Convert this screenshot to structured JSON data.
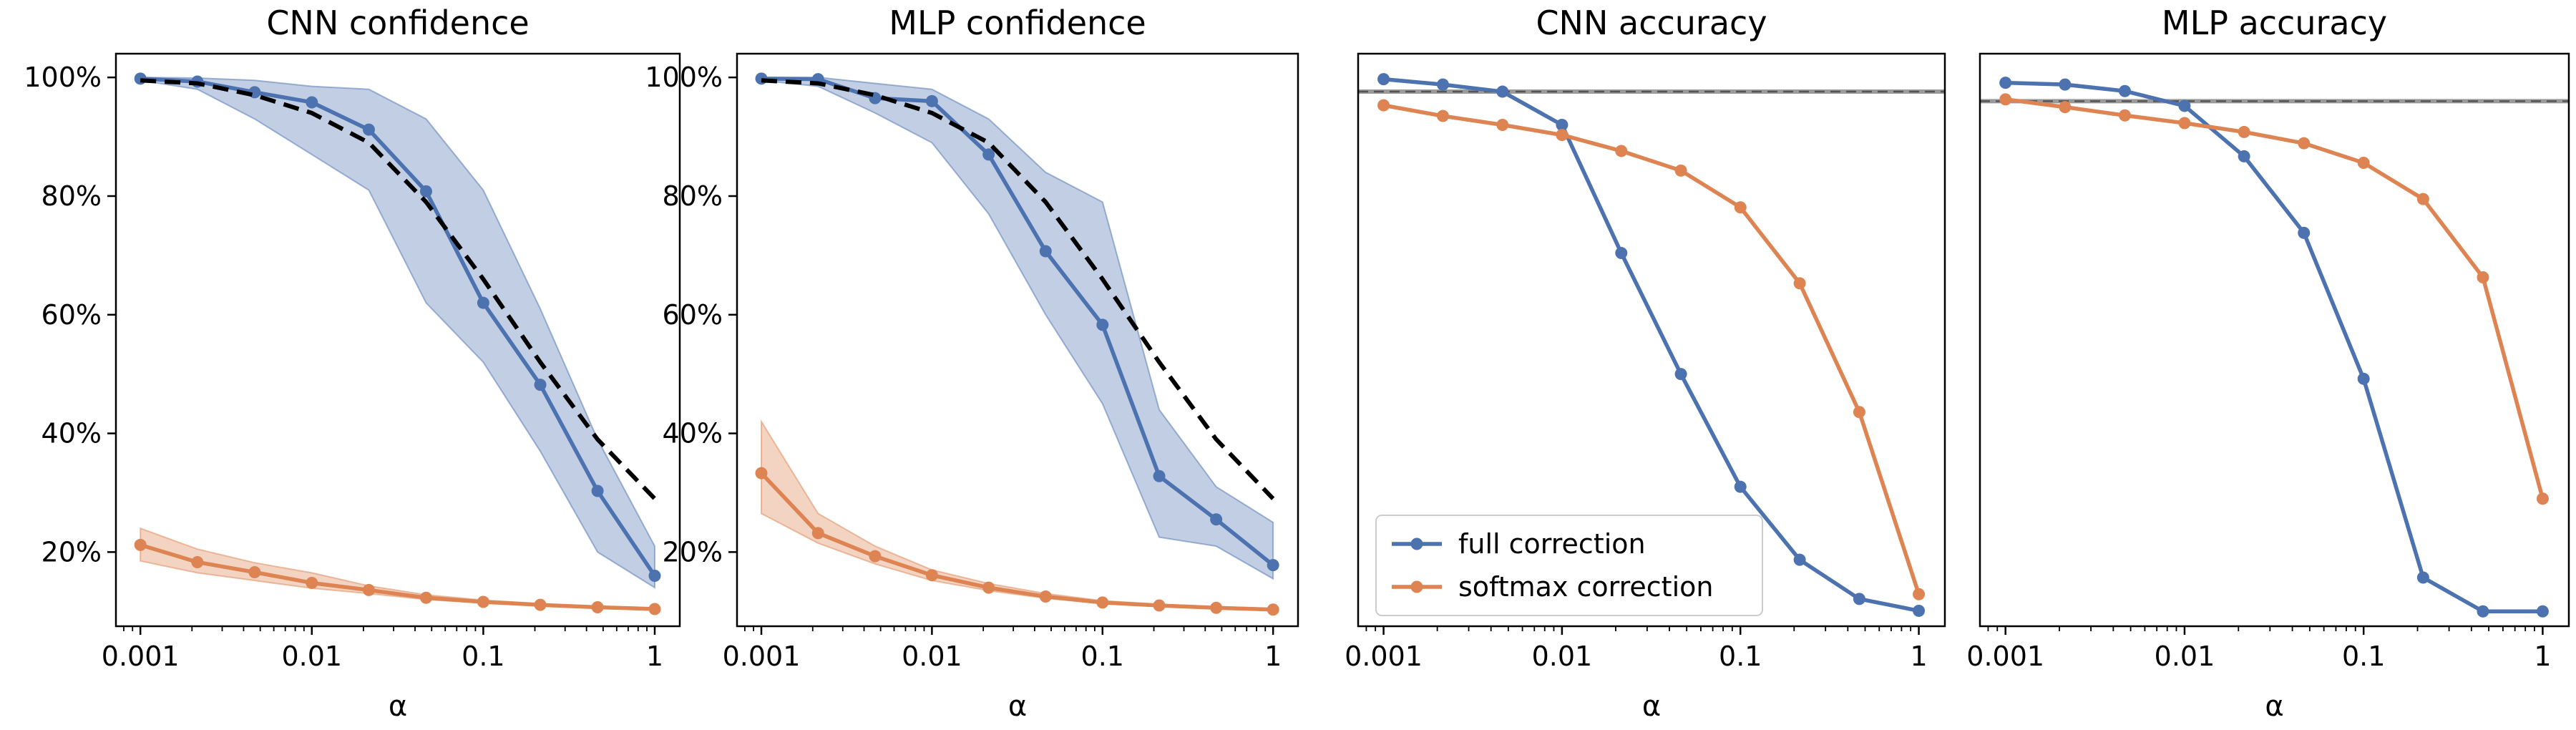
{
  "chart_data": [
    {
      "type": "line",
      "title": "CNN confidence",
      "xlabel": "α",
      "ylabel": "",
      "xscale": "log",
      "xlim": [
        0.00072,
        1.4
      ],
      "ylim": [
        7.5,
        104
      ],
      "x_ticks": [
        "0.001",
        "0.01",
        "0.1",
        "1"
      ],
      "y_ticks": [
        "20%",
        "40%",
        "60%",
        "80%",
        "100%"
      ],
      "x": [
        0.001,
        0.00215,
        0.00464,
        0.01,
        0.0215,
        0.0464,
        0.1,
        0.215,
        0.464,
        1
      ],
      "series": [
        {
          "color": "#4c72b0",
          "marker": "circle",
          "values": [
            99.8,
            99.3,
            97.5,
            95.8,
            91.2,
            80.8,
            62.0,
            48.2,
            30.3,
            16.0
          ],
          "band_low": [
            99.5,
            98.0,
            93.0,
            87.0,
            81.0,
            62.0,
            52.0,
            37.0,
            20.0,
            14.0
          ],
          "band_high": [
            100.0,
            99.9,
            99.5,
            98.5,
            98.0,
            93.0,
            81.0,
            61.0,
            39.0,
            21.0
          ]
        },
        {
          "color": "#dd8452",
          "marker": "circle",
          "values": [
            21.2,
            18.3,
            16.6,
            14.8,
            13.6,
            12.3,
            11.6,
            11.1,
            10.7,
            10.4
          ],
          "band_low": [
            18.5,
            16.5,
            15.2,
            13.9,
            13.0,
            12.0,
            11.4,
            11.0,
            10.6,
            10.3
          ],
          "band_high": [
            24.0,
            20.5,
            18.2,
            16.5,
            14.3,
            12.8,
            11.9,
            11.3,
            10.8,
            10.5
          ]
        },
        {
          "color": "#000000",
          "style": "dashed",
          "values": [
            99.5,
            99.0,
            97.0,
            94.0,
            89.0,
            79.0,
            66.0,
            52.0,
            39.0,
            29.0
          ]
        }
      ]
    },
    {
      "type": "line",
      "title": "MLP confidence",
      "xlabel": "α",
      "ylabel": "",
      "xscale": "log",
      "xlim": [
        0.00072,
        1.4
      ],
      "ylim": [
        7.5,
        104
      ],
      "x_ticks": [
        "0.001",
        "0.01",
        "0.1",
        "1"
      ],
      "y_ticks": [
        "20%",
        "40%",
        "60%",
        "80%",
        "100%"
      ],
      "x": [
        0.001,
        0.00215,
        0.00464,
        0.01,
        0.0215,
        0.0464,
        0.1,
        0.215,
        0.464,
        1
      ],
      "series": [
        {
          "color": "#4c72b0",
          "marker": "circle",
          "values": [
            99.8,
            99.7,
            96.5,
            96.0,
            87.0,
            70.7,
            58.3,
            32.8,
            25.5,
            17.8
          ],
          "band_low": [
            99.5,
            98.5,
            94.0,
            89.0,
            77.0,
            60.0,
            45.0,
            22.5,
            21.0,
            15.5
          ],
          "band_high": [
            100.0,
            100.0,
            99.0,
            98.0,
            93.0,
            84.0,
            79.0,
            44.0,
            31.0,
            25.0
          ]
        },
        {
          "color": "#dd8452",
          "marker": "circle",
          "values": [
            33.3,
            23.2,
            19.3,
            16.1,
            14.0,
            12.5,
            11.5,
            11.0,
            10.6,
            10.3
          ],
          "band_low": [
            26.5,
            21.5,
            18.0,
            15.2,
            13.5,
            12.2,
            11.3,
            10.9,
            10.5,
            10.2
          ],
          "band_high": [
            42.0,
            26.5,
            21.0,
            17.0,
            14.7,
            13.0,
            11.8,
            11.2,
            10.8,
            10.5
          ]
        },
        {
          "color": "#000000",
          "style": "dashed",
          "values": [
            99.5,
            99.0,
            97.0,
            94.0,
            89.0,
            79.0,
            66.0,
            52.0,
            39.0,
            29.0
          ]
        }
      ]
    },
    {
      "type": "line",
      "title": "CNN accuracy",
      "xlabel": "α",
      "ylabel": "",
      "xscale": "log",
      "xlim": [
        0.00072,
        1.4
      ],
      "ylim": [
        7.5,
        104
      ],
      "x_ticks": [
        "0.001",
        "0.01",
        "0.1",
        "1"
      ],
      "y_ticks": [],
      "hline": 97.6,
      "x": [
        0.001,
        0.00215,
        0.00464,
        0.01,
        0.0215,
        0.0464,
        0.1,
        0.215,
        0.464,
        1
      ],
      "legend": {
        "placement": "lower-left",
        "entries": [
          "full correction",
          "softmax correction"
        ]
      },
      "series": [
        {
          "name": "full correction",
          "color": "#4c72b0",
          "marker": "circle",
          "values": [
            99.7,
            98.8,
            97.6,
            92.0,
            70.4,
            50.0,
            31.0,
            18.7,
            12.1,
            10.1
          ]
        },
        {
          "name": "softmax correction",
          "color": "#dd8452",
          "marker": "circle",
          "values": [
            95.3,
            93.5,
            92.0,
            90.3,
            87.6,
            84.3,
            78.1,
            65.3,
            43.6,
            12.9
          ]
        }
      ]
    },
    {
      "type": "line",
      "title": "MLP accuracy",
      "xlabel": "α",
      "ylabel": "",
      "xscale": "log",
      "xlim": [
        0.00072,
        1.4
      ],
      "ylim": [
        7.5,
        104
      ],
      "x_ticks": [
        "0.001",
        "0.01",
        "0.1",
        "1"
      ],
      "y_ticks": [],
      "hline": 96.0,
      "x": [
        0.001,
        0.00215,
        0.00464,
        0.01,
        0.0215,
        0.0464,
        0.1,
        0.215,
        0.464,
        1
      ],
      "series": [
        {
          "color": "#4c72b0",
          "marker": "circle",
          "values": [
            99.1,
            98.8,
            97.7,
            95.2,
            86.7,
            73.8,
            49.2,
            15.7,
            10.0,
            10.0
          ]
        },
        {
          "color": "#dd8452",
          "marker": "circle",
          "values": [
            96.3,
            95.0,
            93.6,
            92.3,
            90.8,
            88.9,
            85.6,
            79.5,
            66.3,
            29.0
          ]
        }
      ]
    }
  ]
}
